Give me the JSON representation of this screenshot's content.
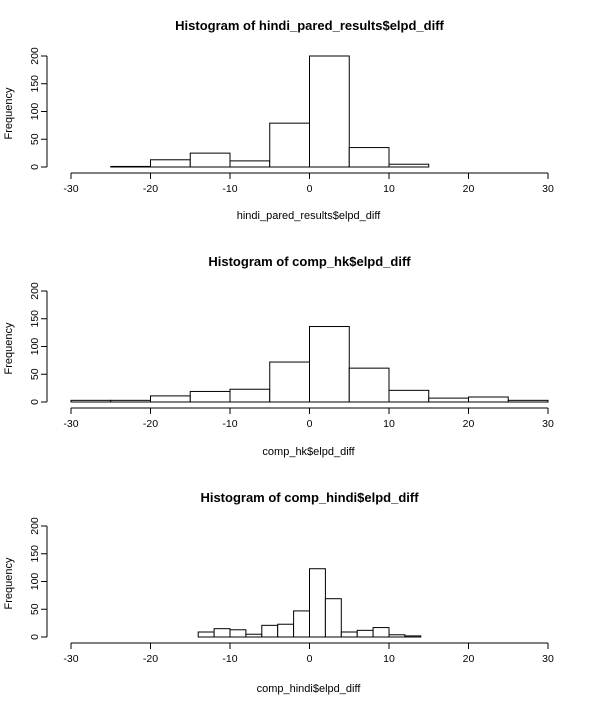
{
  "chart_data": [
    {
      "type": "bar",
      "title": "Histogram of hindi_pared_results$elpd_diff",
      "xlabel": "hindi_pared_results$elpd_diff",
      "ylabel": "Frequency",
      "xlim": [
        -30,
        30
      ],
      "ylim": [
        0,
        200
      ],
      "x_ticks": [
        "-30",
        "-20",
        "-10",
        "0",
        "10",
        "20",
        "30"
      ],
      "y_ticks": [
        "0",
        "50",
        "100",
        "150",
        "200"
      ],
      "bins": [
        {
          "x0": -25,
          "x1": -20,
          "count": 1
        },
        {
          "x0": -20,
          "x1": -15,
          "count": 13
        },
        {
          "x0": -15,
          "x1": -10,
          "count": 25
        },
        {
          "x0": -10,
          "x1": -5,
          "count": 11
        },
        {
          "x0": -5,
          "x1": 0,
          "count": 79
        },
        {
          "x0": 0,
          "x1": 5,
          "count": 200
        },
        {
          "x0": 5,
          "x1": 10,
          "count": 35
        },
        {
          "x0": 10,
          "x1": 15,
          "count": 5
        }
      ]
    },
    {
      "type": "bar",
      "title": "Histogram of comp_hk$elpd_diff",
      "xlabel": "comp_hk$elpd_diff",
      "ylabel": "Frequency",
      "xlim": [
        -30,
        30
      ],
      "ylim": [
        0,
        200
      ],
      "x_ticks": [
        "-30",
        "-20",
        "-10",
        "0",
        "10",
        "20",
        "30"
      ],
      "y_ticks": [
        "0",
        "50",
        "100",
        "150",
        "200"
      ],
      "bins": [
        {
          "x0": -30,
          "x1": -25,
          "count": 3
        },
        {
          "x0": -25,
          "x1": -20,
          "count": 3
        },
        {
          "x0": -20,
          "x1": -15,
          "count": 11
        },
        {
          "x0": -15,
          "x1": -10,
          "count": 19
        },
        {
          "x0": -10,
          "x1": -5,
          "count": 23
        },
        {
          "x0": -5,
          "x1": 0,
          "count": 72
        },
        {
          "x0": 0,
          "x1": 5,
          "count": 136
        },
        {
          "x0": 5,
          "x1": 10,
          "count": 61
        },
        {
          "x0": 10,
          "x1": 15,
          "count": 21
        },
        {
          "x0": 15,
          "x1": 20,
          "count": 7
        },
        {
          "x0": 20,
          "x1": 25,
          "count": 9
        },
        {
          "x0": 25,
          "x1": 30,
          "count": 3
        }
      ]
    },
    {
      "type": "bar",
      "title": "Histogram of comp_hindi$elpd_diff",
      "xlabel": "comp_hindi$elpd_diff",
      "ylabel": "Frequency",
      "xlim": [
        -30,
        30
      ],
      "ylim": [
        0,
        200
      ],
      "x_ticks": [
        "-30",
        "-20",
        "-10",
        "0",
        "10",
        "20",
        "30"
      ],
      "y_ticks": [
        "0",
        "50",
        "100",
        "150",
        "200"
      ],
      "bins": [
        {
          "x0": -14,
          "x1": -12,
          "count": 9
        },
        {
          "x0": -12,
          "x1": -10,
          "count": 15
        },
        {
          "x0": -10,
          "x1": -8,
          "count": 13
        },
        {
          "x0": -8,
          "x1": -6,
          "count": 5
        },
        {
          "x0": -6,
          "x1": -4,
          "count": 21
        },
        {
          "x0": -4,
          "x1": -2,
          "count": 23
        },
        {
          "x0": -2,
          "x1": 0,
          "count": 47
        },
        {
          "x0": 0,
          "x1": 2,
          "count": 123
        },
        {
          "x0": 2,
          "x1": 4,
          "count": 69
        },
        {
          "x0": 4,
          "x1": 6,
          "count": 9
        },
        {
          "x0": 6,
          "x1": 8,
          "count": 12
        },
        {
          "x0": 8,
          "x1": 10,
          "count": 17
        },
        {
          "x0": 10,
          "x1": 12,
          "count": 4
        },
        {
          "x0": 12,
          "x1": 14,
          "count": 2
        }
      ]
    }
  ]
}
